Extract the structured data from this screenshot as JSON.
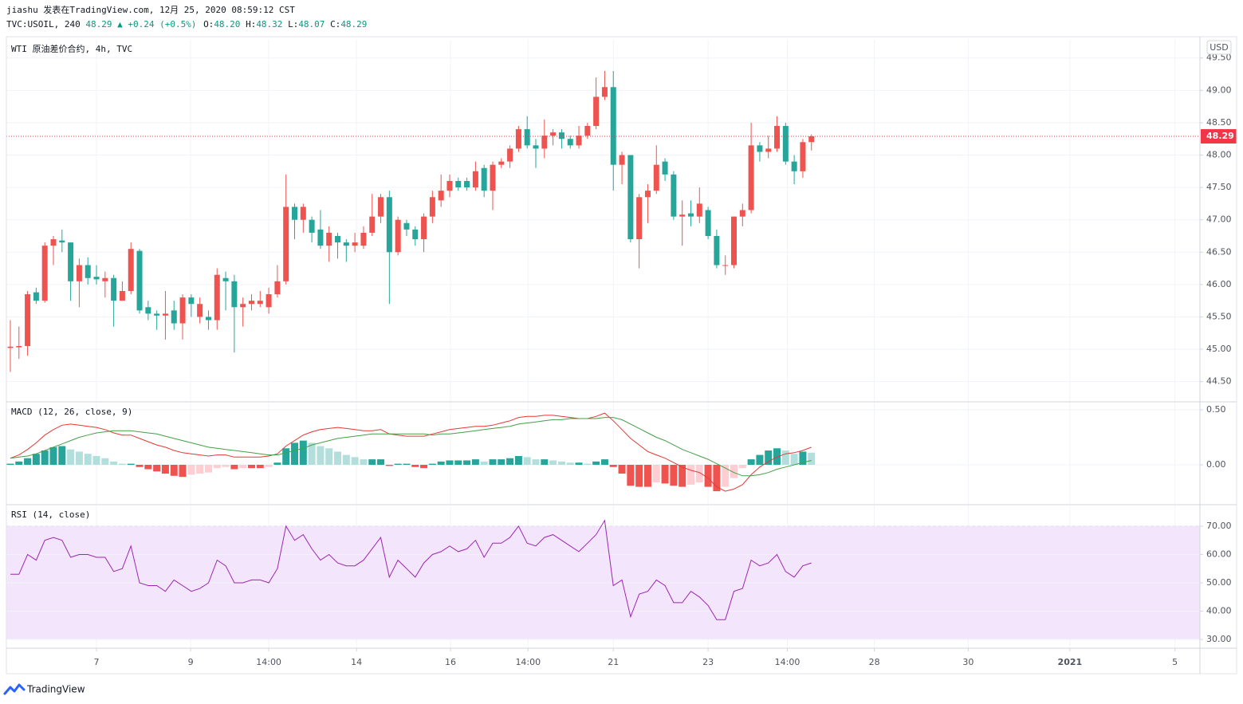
{
  "header": {
    "line1": "jiashu 发表在TradingView.com, 12月 25, 2020 08:59:12 CST",
    "symbol": "TVC:USOIL, 240",
    "quote": "48.29",
    "change": "▲ +0.24 (+0.5%)",
    "ohlc": [
      {
        "label": "O:",
        "value": "48.20"
      },
      {
        "label": "H:",
        "value": "48.32"
      },
      {
        "label": "L:",
        "value": "48.07"
      },
      {
        "label": "C:",
        "value": "48.29"
      }
    ]
  },
  "currency": "USD",
  "footer": {
    "brand": "TradingView"
  },
  "chart_data": [
    {
      "type": "candlestick",
      "title": "WTI 原油差价合约, 4h, TVC",
      "up_color": "#ef5350",
      "down_color": "#26a69a",
      "open": [
        45.02,
        45.03,
        45.05,
        45.88,
        45.75,
        46.6,
        46.68,
        46.65,
        46.05,
        46.3,
        46.12,
        46.05,
        46.1,
        45.75,
        45.9,
        46.52,
        45.65,
        45.55,
        45.52,
        45.6,
        45.4,
        45.8,
        45.5,
        45.5,
        45.45,
        46.1,
        46.05,
        45.65,
        45.7,
        45.7,
        45.65,
        45.85,
        46.05,
        47.2,
        47.0,
        47.0,
        46.85,
        46.6,
        46.75,
        46.65,
        46.6,
        46.6,
        46.8,
        47.05,
        47.35,
        46.5,
        46.95,
        46.85,
        46.7,
        47.05,
        47.3,
        47.45,
        47.6,
        47.6,
        47.5,
        47.8,
        47.45,
        47.85,
        47.9,
        48.1,
        48.4,
        48.15,
        48.1,
        48.3,
        48.35,
        48.25,
        48.15,
        48.3,
        48.45,
        48.9,
        49.05,
        47.85,
        48.0,
        46.7,
        47.35,
        47.45,
        47.9,
        47.7,
        47.05,
        47.1,
        47.05,
        47.15,
        46.75,
        46.3,
        46.3,
        47.05,
        47.15,
        48.15,
        48.05,
        48.1,
        48.45,
        47.9,
        47.75,
        48.2
      ],
      "high": [
        45.45,
        45.35,
        45.9,
        45.95,
        46.65,
        46.75,
        46.85,
        46.65,
        46.4,
        46.42,
        46.3,
        46.2,
        46.15,
        46.05,
        46.65,
        46.55,
        45.75,
        45.6,
        45.9,
        45.75,
        45.85,
        45.85,
        45.8,
        45.6,
        46.25,
        46.2,
        46.15,
        45.8,
        45.85,
        45.9,
        45.95,
        46.3,
        47.7,
        47.25,
        47.25,
        47.05,
        47.15,
        46.9,
        46.8,
        46.7,
        46.8,
        46.9,
        47.4,
        47.4,
        47.45,
        47.05,
        47.0,
        46.9,
        47.1,
        47.45,
        47.7,
        47.7,
        47.65,
        47.65,
        47.9,
        47.85,
        47.9,
        47.95,
        48.15,
        48.45,
        48.6,
        48.25,
        48.55,
        48.4,
        48.4,
        48.3,
        48.45,
        48.5,
        49.2,
        49.3,
        49.3,
        48.05,
        48.0,
        47.4,
        47.55,
        48.15,
        47.95,
        47.75,
        47.3,
        47.3,
        47.5,
        47.2,
        46.85,
        46.45,
        47.05,
        47.25,
        48.5,
        48.2,
        48.3,
        48.6,
        48.5,
        48.0,
        48.25,
        48.32
      ],
      "low": [
        44.65,
        44.85,
        44.9,
        45.7,
        45.72,
        46.3,
        46.5,
        45.75,
        45.65,
        46.0,
        46.0,
        45.8,
        45.35,
        45.75,
        45.85,
        45.55,
        45.45,
        45.3,
        45.15,
        45.3,
        45.15,
        45.5,
        45.4,
        45.3,
        45.3,
        45.6,
        44.95,
        45.35,
        45.6,
        45.65,
        45.55,
        45.8,
        46.0,
        46.7,
        46.8,
        46.65,
        46.55,
        46.35,
        46.4,
        46.35,
        46.5,
        46.55,
        46.75,
        46.95,
        45.7,
        46.45,
        46.75,
        46.6,
        46.5,
        46.95,
        47.2,
        47.35,
        47.45,
        47.45,
        47.45,
        47.35,
        47.15,
        47.8,
        47.8,
        48.05,
        48.1,
        47.8,
        47.95,
        48.15,
        48.1,
        48.1,
        48.1,
        48.25,
        48.4,
        48.85,
        47.45,
        47.55,
        46.65,
        46.25,
        46.95,
        47.4,
        47.6,
        47.0,
        46.6,
        46.9,
        46.95,
        46.7,
        46.25,
        46.15,
        46.25,
        46.9,
        47.1,
        47.9,
        47.95,
        48.05,
        47.85,
        47.55,
        47.65,
        48.07
      ],
      "close": [
        45.04,
        45.05,
        45.85,
        45.75,
        46.6,
        46.7,
        46.65,
        46.05,
        46.3,
        46.1,
        46.08,
        46.1,
        45.75,
        45.9,
        46.55,
        45.6,
        45.55,
        45.52,
        45.55,
        45.4,
        45.8,
        45.7,
        45.7,
        45.45,
        46.15,
        46.05,
        45.65,
        45.7,
        45.75,
        45.75,
        45.85,
        46.05,
        47.2,
        47.0,
        47.2,
        46.8,
        46.6,
        46.8,
        46.65,
        46.6,
        46.65,
        46.8,
        47.05,
        47.35,
        46.5,
        47.0,
        46.85,
        46.7,
        47.05,
        47.35,
        47.45,
        47.6,
        47.5,
        47.5,
        47.75,
        47.45,
        47.85,
        47.9,
        48.1,
        48.4,
        48.15,
        48.1,
        48.3,
        48.35,
        48.25,
        48.15,
        48.3,
        48.45,
        48.9,
        49.05,
        47.85,
        48.0,
        46.7,
        47.35,
        47.45,
        47.85,
        47.7,
        47.05,
        47.08,
        47.05,
        47.25,
        46.75,
        46.3,
        46.3,
        47.05,
        47.15,
        48.15,
        48.05,
        48.1,
        48.45,
        47.9,
        47.75,
        48.2,
        48.29
      ],
      "last_price": 48.29,
      "last_color": "#f23645",
      "ylim": [
        44.2,
        49.78
      ],
      "yticks": [
        {
          "value": 44.5,
          "label": "44.50"
        },
        {
          "value": 45,
          "label": "45.00"
        },
        {
          "value": 45.5,
          "label": "45.50"
        },
        {
          "value": 46,
          "label": "46.00"
        },
        {
          "value": 46.5,
          "label": "46.50"
        },
        {
          "value": 47,
          "label": "47.00"
        },
        {
          "value": 47.5,
          "label": "47.50"
        },
        {
          "value": 48,
          "label": "48.00"
        },
        {
          "value": 48.5,
          "label": "48.50"
        },
        {
          "value": 49,
          "label": "49.00"
        },
        {
          "value": 49.5,
          "label": "49.50"
        }
      ],
      "xlim": [
        -0.46,
        138.1
      ],
      "xticks": [
        {
          "value": 10.0,
          "label": "7"
        },
        {
          "value": 20.93,
          "label": "9"
        },
        {
          "value": 30.0,
          "label": "14:00"
        },
        {
          "value": 40.19,
          "label": "14"
        },
        {
          "value": 51.1,
          "label": "16"
        },
        {
          "value": 60.1,
          "label": "14:00"
        },
        {
          "value": 70.0,
          "label": "21"
        },
        {
          "value": 81.0,
          "label": "23"
        },
        {
          "value": 90.2,
          "label": "14:00"
        },
        {
          "value": 100.3,
          "label": "28"
        },
        {
          "value": 111.2,
          "label": "30"
        },
        {
          "value": 123.0,
          "label": "2021"
        },
        {
          "value": 135.2,
          "label": "5"
        }
      ],
      "grid": true
    },
    {
      "type": "line",
      "title": "MACD (12, 26, close, 9)",
      "histogram": {
        "values": [
          0.01,
          0.03,
          0.06,
          0.1,
          0.13,
          0.16,
          0.17,
          0.14,
          0.12,
          0.1,
          0.08,
          0.06,
          0.03,
          0.01,
          0.01,
          -0.02,
          -0.04,
          -0.06,
          -0.08,
          -0.1,
          -0.11,
          -0.09,
          -0.08,
          -0.07,
          -0.03,
          -0.02,
          -0.04,
          -0.03,
          -0.03,
          -0.03,
          -0.02,
          0.02,
          0.15,
          0.2,
          0.22,
          0.2,
          0.17,
          0.15,
          0.12,
          0.09,
          0.07,
          0.05,
          0.05,
          0.05,
          -0.01,
          0.01,
          0.01,
          -0.02,
          -0.03,
          0.01,
          0.03,
          0.04,
          0.04,
          0.04,
          0.05,
          0.03,
          0.05,
          0.05,
          0.06,
          0.08,
          0.07,
          0.05,
          0.05,
          0.04,
          0.03,
          0.02,
          0.02,
          0.01,
          0.03,
          0.05,
          -0.02,
          -0.08,
          -0.19,
          -0.2,
          -0.2,
          -0.16,
          -0.17,
          -0.19,
          -0.2,
          -0.18,
          -0.16,
          -0.2,
          -0.24,
          -0.2,
          -0.12,
          -0.03,
          0.05,
          0.09,
          0.13,
          0.15,
          0.13,
          0.1,
          0.12,
          0.11
        ],
        "colors": {
          "grow_up": "#26a69a",
          "fade_up": "#b2dfdb",
          "fade_down": "#ffcdd2",
          "grow_down": "#ef5350"
        }
      },
      "series": [
        {
          "color": "#e53935",
          "values": [
            0.06,
            0.09,
            0.14,
            0.2,
            0.27,
            0.32,
            0.36,
            0.37,
            0.36,
            0.35,
            0.34,
            0.32,
            0.29,
            0.27,
            0.27,
            0.24,
            0.21,
            0.18,
            0.16,
            0.13,
            0.11,
            0.1,
            0.09,
            0.08,
            0.09,
            0.09,
            0.07,
            0.07,
            0.07,
            0.07,
            0.08,
            0.1,
            0.17,
            0.22,
            0.27,
            0.3,
            0.32,
            0.33,
            0.34,
            0.33,
            0.32,
            0.31,
            0.31,
            0.32,
            0.28,
            0.27,
            0.26,
            0.26,
            0.26,
            0.28,
            0.3,
            0.32,
            0.33,
            0.34,
            0.35,
            0.35,
            0.36,
            0.38,
            0.4,
            0.43,
            0.44,
            0.44,
            0.45,
            0.45,
            0.44,
            0.43,
            0.42,
            0.42,
            0.44,
            0.47,
            0.4,
            0.32,
            0.24,
            0.18,
            0.12,
            0.09,
            0.06,
            0.02,
            -0.02,
            -0.05,
            -0.07,
            -0.12,
            -0.2,
            -0.24,
            -0.22,
            -0.18,
            -0.09,
            -0.02,
            0.03,
            0.07,
            0.1,
            0.11,
            0.13,
            0.16
          ]
        },
        {
          "color": "#43a047",
          "values": [
            0.06,
            0.07,
            0.08,
            0.1,
            0.13,
            0.16,
            0.19,
            0.22,
            0.25,
            0.27,
            0.29,
            0.3,
            0.31,
            0.31,
            0.31,
            0.3,
            0.29,
            0.28,
            0.26,
            0.24,
            0.22,
            0.2,
            0.18,
            0.16,
            0.15,
            0.14,
            0.13,
            0.12,
            0.11,
            0.1,
            0.09,
            0.09,
            0.11,
            0.13,
            0.15,
            0.18,
            0.2,
            0.22,
            0.24,
            0.25,
            0.26,
            0.27,
            0.28,
            0.28,
            0.28,
            0.28,
            0.28,
            0.28,
            0.28,
            0.27,
            0.28,
            0.28,
            0.29,
            0.3,
            0.31,
            0.32,
            0.33,
            0.34,
            0.35,
            0.37,
            0.38,
            0.39,
            0.4,
            0.41,
            0.41,
            0.42,
            0.42,
            0.42,
            0.42,
            0.43,
            0.43,
            0.41,
            0.37,
            0.33,
            0.29,
            0.25,
            0.22,
            0.18,
            0.14,
            0.11,
            0.08,
            0.05,
            0.01,
            -0.03,
            -0.07,
            -0.1,
            -0.1,
            -0.09,
            -0.07,
            -0.04,
            -0.02,
            0.0,
            0.02,
            0.04
          ]
        }
      ],
      "ylim": [
        -0.355,
        0.565
      ],
      "yticks": [
        {
          "value": 0,
          "label": "0.00"
        },
        {
          "value": 0.5,
          "label": "0.50"
        }
      ],
      "grid": true
    },
    {
      "type": "line",
      "title": "RSI (14, close)",
      "band": [
        30,
        70
      ],
      "band_color": "#f3e5fc",
      "series": [
        {
          "color": "#9c27b0",
          "values": [
            53,
            53,
            60,
            58,
            65,
            66,
            65,
            59,
            60,
            60,
            59,
            59,
            54,
            55,
            63,
            50,
            49,
            49,
            47,
            51,
            49,
            47,
            48,
            50,
            58,
            56,
            50,
            50,
            51,
            51,
            50,
            55,
            70,
            65,
            67,
            62,
            58,
            60,
            57,
            56,
            56,
            58,
            62,
            66,
            52,
            58,
            55,
            52,
            57,
            60,
            61,
            63,
            61,
            62,
            65,
            59,
            64,
            64,
            66,
            70,
            64,
            63,
            66,
            67,
            65,
            63,
            61,
            64,
            67,
            72,
            49,
            51,
            38,
            46,
            47,
            51,
            49,
            43,
            43,
            47,
            45,
            42,
            37,
            37,
            47,
            48,
            58,
            56,
            57,
            60,
            54,
            52,
            56,
            57
          ]
        }
      ],
      "ylim": [
        27.2,
        77.3
      ],
      "yticks": [
        {
          "value": 30,
          "label": "30.00"
        },
        {
          "value": 40,
          "label": "40.00"
        },
        {
          "value": 50,
          "label": "50.00"
        },
        {
          "value": 60,
          "label": "60.00"
        },
        {
          "value": 70,
          "label": "70.00"
        }
      ],
      "grid": true
    }
  ]
}
